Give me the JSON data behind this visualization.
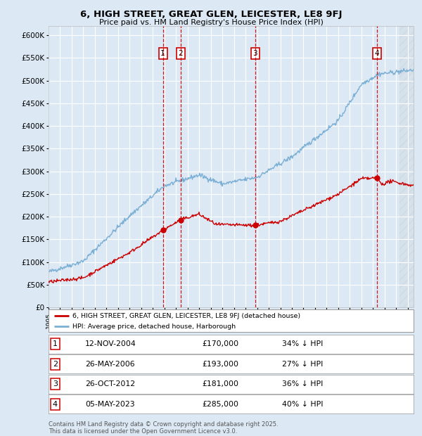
{
  "title": "6, HIGH STREET, GREAT GLEN, LEICESTER, LE8 9FJ",
  "subtitle": "Price paid vs. HM Land Registry's House Price Index (HPI)",
  "background_color": "#dce9f5",
  "plot_bg_color": "#dce9f5",
  "red_line_color": "#cc0000",
  "blue_line_color": "#7bafd4",
  "ylim": [
    0,
    620000
  ],
  "yticks": [
    0,
    50000,
    100000,
    150000,
    200000,
    250000,
    300000,
    350000,
    400000,
    450000,
    500000,
    550000,
    600000
  ],
  "ytick_labels": [
    "£0",
    "£50K",
    "£100K",
    "£150K",
    "£200K",
    "£250K",
    "£300K",
    "£350K",
    "£400K",
    "£450K",
    "£500K",
    "£550K",
    "£600K"
  ],
  "xlim_start": 1995.0,
  "xlim_end": 2026.5,
  "sale_dates": [
    2004.87,
    2006.4,
    2012.82,
    2023.34
  ],
  "sale_prices": [
    170000,
    193000,
    181000,
    285000
  ],
  "sale_labels": [
    "1",
    "2",
    "3",
    "4"
  ],
  "footer_text": "Contains HM Land Registry data © Crown copyright and database right 2025.\nThis data is licensed under the Open Government Licence v3.0.",
  "legend_red_label": "6, HIGH STREET, GREAT GLEN, LEICESTER, LE8 9FJ (detached house)",
  "legend_blue_label": "HPI: Average price, detached house, Harborough",
  "table_data": [
    [
      "1",
      "12-NOV-2004",
      "£170,000",
      "34% ↓ HPI"
    ],
    [
      "2",
      "26-MAY-2006",
      "£193,000",
      "27% ↓ HPI"
    ],
    [
      "3",
      "26-OCT-2012",
      "£181,000",
      "36% ↓ HPI"
    ],
    [
      "4",
      "05-MAY-2023",
      "£285,000",
      "40% ↓ HPI"
    ]
  ]
}
